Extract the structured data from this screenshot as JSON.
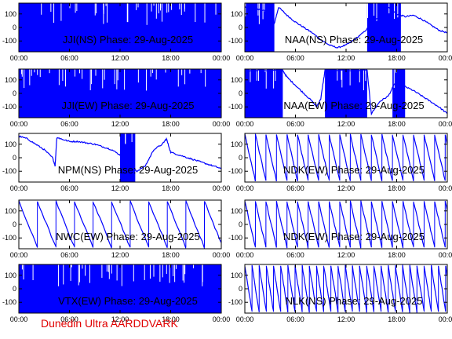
{
  "footer": {
    "label": "Dunedin Ultra AARDDVARK"
  },
  "colors": {
    "trace": "#0000ff",
    "frame": "#000000",
    "footer_text": "#e00000"
  },
  "chart_data": [
    {
      "type": "line",
      "title": "JJI(NS) Phase: 29-Aug-2025",
      "x_ticks": [
        "00:00",
        "06:00",
        "12:00",
        "18:00",
        "00:00"
      ],
      "y_ticks": [
        "100",
        "0",
        "-100"
      ],
      "ylim": [
        -180,
        180
      ],
      "xlim": [
        0,
        24
      ],
      "pattern": "dense"
    },
    {
      "type": "line",
      "title": "NAA(NS) Phase: 29-Aug-2025",
      "x_ticks": [
        "00:00",
        "06:00",
        "12:00",
        "18:00",
        "00:00"
      ],
      "y_ticks": [
        "100",
        "0",
        "-100"
      ],
      "ylim": [
        -180,
        180
      ],
      "xlim": [
        0,
        24
      ],
      "series": [
        {
          "values": [
            [
              0,
              150
            ],
            [
              1,
              140
            ],
            [
              2,
              130
            ],
            [
              3,
              110
            ],
            [
              3.5,
              30
            ],
            [
              4,
              150
            ],
            [
              5,
              90
            ],
            [
              6,
              40
            ],
            [
              7,
              0
            ],
            [
              8,
              -40
            ],
            [
              9,
              -90
            ],
            [
              10,
              -130
            ],
            [
              11,
              -150
            ],
            [
              12,
              -130
            ],
            [
              13,
              -90
            ],
            [
              14,
              -40
            ],
            [
              15,
              20
            ],
            [
              16,
              90
            ],
            [
              17,
              150
            ],
            [
              18,
              100
            ],
            [
              19,
              80
            ],
            [
              20,
              90
            ],
            [
              21,
              60
            ],
            [
              22,
              20
            ],
            [
              23,
              -20
            ],
            [
              24,
              -40
            ]
          ]
        }
      ],
      "dense_ranges": [
        [
          0,
          3.5
        ],
        [
          14.5,
          18.5
        ]
      ]
    },
    {
      "type": "line",
      "title": "JJI(EW) Phase: 29-Aug-2025",
      "x_ticks": [
        "00:00",
        "06:00",
        "12:00",
        "18:00",
        "00:00"
      ],
      "y_ticks": [
        "100",
        "0",
        "-100"
      ],
      "ylim": [
        -180,
        180
      ],
      "xlim": [
        0,
        24
      ],
      "pattern": "dense"
    },
    {
      "type": "line",
      "title": "NAA(EW) Phase: 29-Aug-2025",
      "x_ticks": [
        "00:00",
        "06:00",
        "12:00",
        "18:00",
        "00:00"
      ],
      "y_ticks": [
        "100",
        "0",
        "-100"
      ],
      "ylim": [
        -180,
        180
      ],
      "xlim": [
        0,
        24
      ],
      "series": [
        {
          "values": [
            [
              0,
              170
            ],
            [
              2,
              170
            ],
            [
              4.5,
              170
            ],
            [
              5,
              120
            ],
            [
              6,
              60
            ],
            [
              7,
              0
            ],
            [
              8,
              -60
            ],
            [
              8.5,
              -100
            ],
            [
              9,
              -40
            ],
            [
              9.5,
              170
            ],
            [
              14.5,
              170
            ],
            [
              15,
              -150
            ],
            [
              16,
              -60
            ],
            [
              17,
              -20
            ],
            [
              18,
              100
            ],
            [
              19,
              50
            ],
            [
              20,
              20
            ],
            [
              21,
              -20
            ],
            [
              22,
              -60
            ],
            [
              23,
              -100
            ],
            [
              24,
              -150
            ]
          ]
        }
      ],
      "dense_ranges": [
        [
          0,
          4.5
        ],
        [
          9.5,
          14.5
        ],
        [
          17.5,
          19
        ]
      ]
    },
    {
      "type": "line",
      "title": "NPM(NS) Phase: 29-Aug-2025",
      "x_ticks": [
        "00:00",
        "06:00",
        "12:00",
        "18:00",
        "00:00"
      ],
      "y_ticks": [
        "100",
        "0",
        "-100"
      ],
      "ylim": [
        -180,
        180
      ],
      "xlim": [
        0,
        24
      ],
      "series": [
        {
          "values": [
            [
              0,
              160
            ],
            [
              1,
              140
            ],
            [
              2,
              100
            ],
            [
              3,
              60
            ],
            [
              4,
              0
            ],
            [
              4.3,
              -60
            ],
            [
              4.5,
              150
            ],
            [
              5,
              140
            ],
            [
              6,
              120
            ],
            [
              7,
              120
            ],
            [
              8,
              110
            ],
            [
              9,
              100
            ],
            [
              10,
              80
            ],
            [
              11,
              60
            ],
            [
              12,
              20
            ],
            [
              13,
              -40
            ],
            [
              14,
              -100
            ],
            [
              15,
              -60
            ],
            [
              16,
              60
            ],
            [
              17,
              100
            ],
            [
              17.5,
              140
            ],
            [
              18,
              40
            ],
            [
              19,
              20
            ],
            [
              20,
              0
            ],
            [
              21,
              -20
            ],
            [
              22,
              -40
            ],
            [
              23,
              -60
            ],
            [
              24,
              -80
            ]
          ]
        }
      ],
      "dense_ranges": [
        [
          12,
          13.8
        ]
      ]
    },
    {
      "type": "line",
      "title": "NDK(EW) Phase: 29-Aug-2025",
      "x_ticks": [
        "00:00",
        "06:00",
        "12:00",
        "18:00",
        "00:00"
      ],
      "y_ticks": [
        "100",
        "0",
        "-100"
      ],
      "ylim": [
        -180,
        180
      ],
      "xlim": [
        0,
        24
      ],
      "pattern": "sawtooth",
      "period_hours": 1.25
    },
    {
      "type": "line",
      "title": "NWC(EW) Phase: 29-Aug-2025",
      "x_ticks": [
        "00:00",
        "06:00",
        "12:00",
        "18:00",
        "00:00"
      ],
      "y_ticks": [
        "100",
        "0",
        "-100"
      ],
      "ylim": [
        -180,
        180
      ],
      "xlim": [
        0,
        24
      ],
      "pattern": "sawtooth",
      "period_hours": 2.2
    },
    {
      "type": "line",
      "title": "NDK(EW) Phase: 29-Aug-2025",
      "x_ticks": [
        "00:00",
        "06:00",
        "12:00",
        "18:00",
        "00:00"
      ],
      "y_ticks": [
        "100",
        "0",
        "-100"
      ],
      "ylim": [
        -180,
        180
      ],
      "xlim": [
        0,
        24
      ],
      "pattern": "sawtooth",
      "period_hours": 1.25
    },
    {
      "type": "line",
      "title": "VTX(EW) Phase: 29-Aug-2025",
      "x_ticks": [
        "00:00",
        "06:00",
        "12:00",
        "18:00",
        "00:00"
      ],
      "y_ticks": [
        "100",
        "0",
        "-100"
      ],
      "ylim": [
        -180,
        180
      ],
      "xlim": [
        0,
        24
      ],
      "pattern": "dense"
    },
    {
      "type": "line",
      "title": "NLK(NS) Phase: 29-Aug-2025",
      "x_ticks": [
        "00:00",
        "06:00",
        "12:00",
        "18:00",
        "00:00"
      ],
      "y_ticks": [
        "100",
        "0",
        "-100"
      ],
      "ylim": [
        -180,
        180
      ],
      "xlim": [
        0,
        24
      ],
      "pattern": "sawtooth",
      "period_hours": 0.85
    }
  ]
}
